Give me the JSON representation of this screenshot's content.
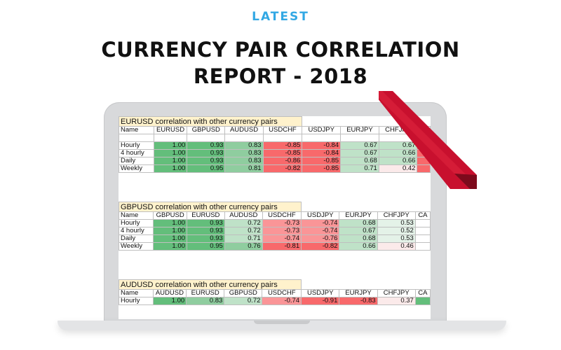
{
  "header": {
    "kicker": "LATEST",
    "title_line1": "CURRENCY PAIR CORRELATION",
    "title_line2": "REPORT - 2018"
  },
  "colors": {
    "kicker": "#32a8e4",
    "strong_positive": "#63be7b",
    "mid_positive": "#c6e6cf",
    "neutral": "#fbeaea",
    "negative": "#f8696b",
    "title_fill": "#fff2cc",
    "ribbon": "#c8102e"
  },
  "tables": [
    {
      "title": "EURUSD correlation with other currency pairs",
      "columns": [
        "Name",
        "EURUSD",
        "GBPUSD",
        "AUDUSD",
        "USDCHF",
        "USDJPY",
        "EURJPY",
        "CHFJPY",
        ""
      ],
      "blank_row": true,
      "rows": [
        {
          "name": "Hourly",
          "values": [
            "1.00",
            "0.93",
            "0.83",
            "-0.85",
            "-0.84",
            "0.67",
            "0.67",
            ""
          ]
        },
        {
          "name": "4 hourly",
          "values": [
            "1.00",
            "0.93",
            "0.83",
            "-0.85",
            "-0.84",
            "0.67",
            "0.66",
            ""
          ]
        },
        {
          "name": "Daily",
          "values": [
            "1.00",
            "0.93",
            "0.83",
            "-0.86",
            "-0.85",
            "0.68",
            "0.66",
            ""
          ]
        },
        {
          "name": "Weekly",
          "values": [
            "1.00",
            "0.95",
            "0.81",
            "-0.82",
            "-0.85",
            "0.71",
            "0.42",
            ""
          ]
        }
      ]
    },
    {
      "title": "GBPUSD correlation with other currency pairs",
      "columns": [
        "Name",
        "GBPUSD",
        "EURUSD",
        "AUDUSD",
        "USDCHF",
        "USDJPY",
        "EURJPY",
        "CHFJPY",
        "CA"
      ],
      "blank_row": false,
      "rows": [
        {
          "name": "Hourly",
          "values": [
            "1.00",
            "0.93",
            "0.72",
            "-0.73",
            "-0.74",
            "0.68",
            "0.53",
            ""
          ]
        },
        {
          "name": "4 hourly",
          "values": [
            "1.00",
            "0.93",
            "0.72",
            "-0.73",
            "-0.74",
            "0.67",
            "0.52",
            ""
          ]
        },
        {
          "name": "Daily",
          "values": [
            "1.00",
            "0.93",
            "0.71",
            "-0.74",
            "-0.76",
            "0.68",
            "0.53",
            ""
          ]
        },
        {
          "name": "Weekly",
          "values": [
            "1.00",
            "0.95",
            "0.76",
            "-0.81",
            "-0.82",
            "0.66",
            "0.46",
            ""
          ]
        }
      ]
    },
    {
      "title": "AUDUSD correlation with other currency pairs",
      "columns": [
        "Name",
        "AUDUSD",
        "EURUSD",
        "GBPUSD",
        "USDCHF",
        "USDJPY",
        "EURJPY",
        "CHFJPY",
        "CA"
      ],
      "blank_row": false,
      "rows": [
        {
          "name": "Hourly",
          "values": [
            "1.00",
            "0.83",
            "0.72",
            "-0.74",
            "-0.91",
            "-0.83",
            "0.37",
            ""
          ]
        }
      ]
    }
  ]
}
